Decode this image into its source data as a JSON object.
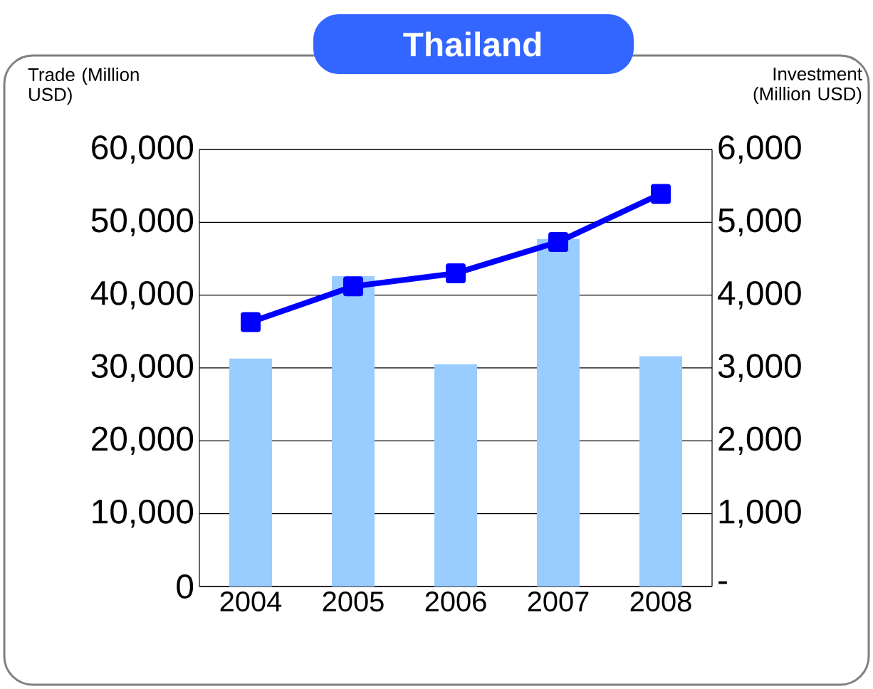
{
  "chart_data": {
    "type": "bar",
    "title": "Thailand",
    "ylabel": "Trade (Million USD)",
    "y2label": "Investment (Million USD)",
    "categories": [
      "2004",
      "2005",
      "2006",
      "2007",
      "2008"
    ],
    "series": [
      {
        "color": "#99ccff",
        "values": [
          31300,
          42600,
          30500,
          47700,
          31600
        ]
      },
      {
        "type": "line",
        "axis": "y2",
        "color": "#0000ff",
        "marker": "square",
        "values": [
          3630,
          4120,
          4300,
          4730,
          5390
        ]
      }
    ],
    "ylim": [
      0,
      60000
    ],
    "yticks": [
      {
        "value": 0,
        "label": "0"
      },
      {
        "value": 10000,
        "label": "10,000"
      },
      {
        "value": 20000,
        "label": "20,000"
      },
      {
        "value": 30000,
        "label": "30,000"
      },
      {
        "value": 40000,
        "label": "40,000"
      },
      {
        "value": 50000,
        "label": "50,000"
      },
      {
        "value": 60000,
        "label": "60,000"
      }
    ],
    "y2lim": [
      0,
      6000
    ],
    "y2ticks": [
      {
        "value": 0,
        "label": "-"
      },
      {
        "value": 1000,
        "label": "1,000"
      },
      {
        "value": 2000,
        "label": "2,000"
      },
      {
        "value": 3000,
        "label": "3,000"
      },
      {
        "value": 4000,
        "label": "4,000"
      },
      {
        "value": 5000,
        "label": "5,000"
      },
      {
        "value": 6000,
        "label": "6,000"
      }
    ],
    "grid": "y"
  }
}
